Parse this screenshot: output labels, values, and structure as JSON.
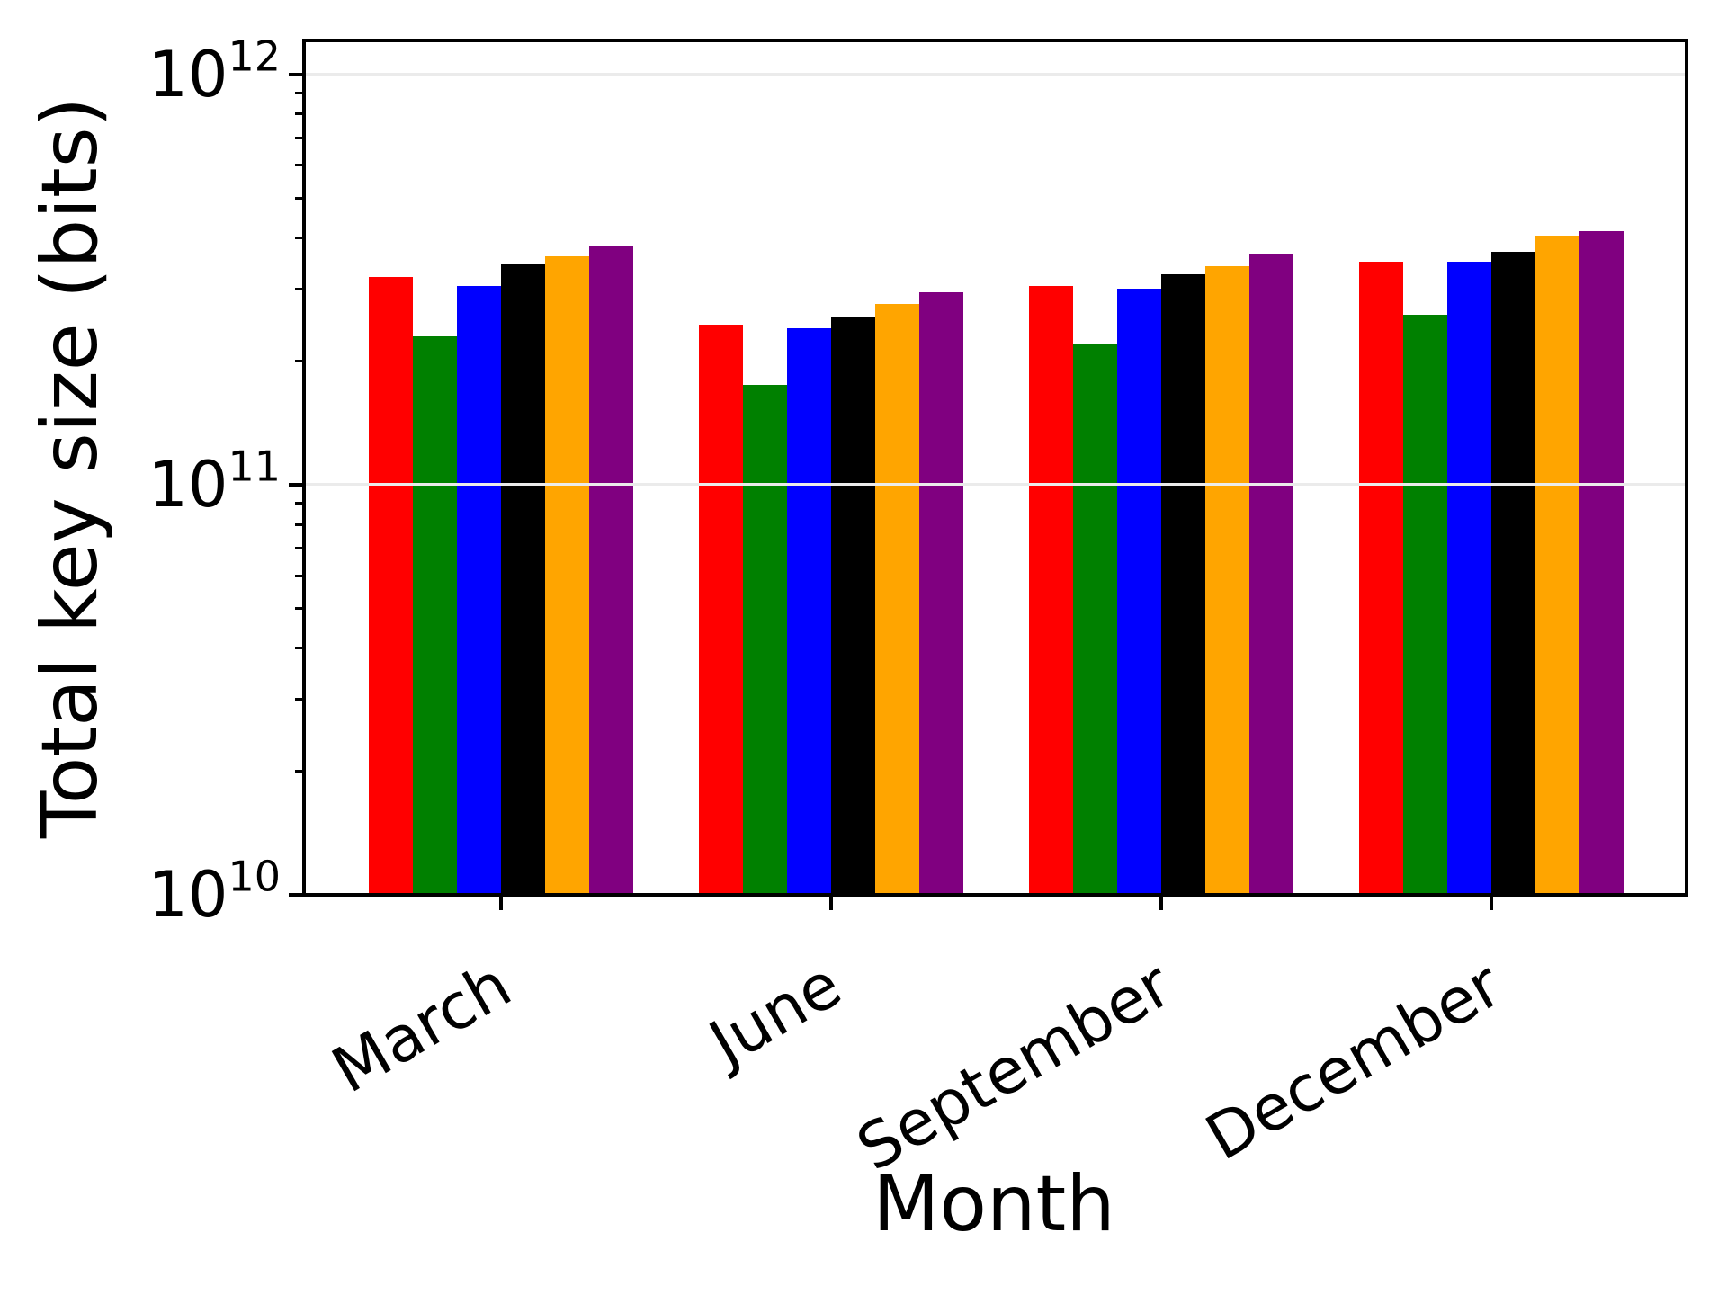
{
  "figure": {
    "background_color": "#ffffff",
    "plot_bg_color": "#ffffff",
    "axis_color": "#000000",
    "gridline_color": "#ebebeb"
  },
  "chart_data": {
    "type": "bar",
    "title": "",
    "xlabel": "Month",
    "ylabel": "Total key size (bits)",
    "yscale": "log",
    "ylim": [
      10000000000.0,
      1210000000000.0
    ],
    "grid": "major-y, drawn over bars",
    "legend": "none",
    "x_tick_rotation_deg": 30,
    "categories": [
      "March",
      "June",
      "September",
      "December"
    ],
    "series": [
      {
        "name": "red",
        "color": "#ff0000",
        "values": [
          320000000000.0,
          245000000000.0,
          305000000000.0,
          350000000000.0
        ]
      },
      {
        "name": "green",
        "color": "#008000",
        "values": [
          230000000000.0,
          175000000000.0,
          220000000000.0,
          260000000000.0
        ]
      },
      {
        "name": "blue",
        "color": "#0000ff",
        "values": [
          305000000000.0,
          240000000000.0,
          300000000000.0,
          350000000000.0
        ]
      },
      {
        "name": "black",
        "color": "#000000",
        "values": [
          345000000000.0,
          255000000000.0,
          325000000000.0,
          370000000000.0
        ]
      },
      {
        "name": "orange",
        "color": "#ffa500",
        "values": [
          360000000000.0,
          275000000000.0,
          340000000000.0,
          405000000000.0
        ]
      },
      {
        "name": "purple",
        "color": "#800080",
        "values": [
          380000000000.0,
          295000000000.0,
          365000000000.0,
          415000000000.0
        ]
      }
    ],
    "y_major_tick_exponents": [
      10,
      11,
      12
    ],
    "y_minor_tick_multiples": [
      2,
      3,
      4,
      5,
      6,
      7,
      8,
      9
    ]
  }
}
